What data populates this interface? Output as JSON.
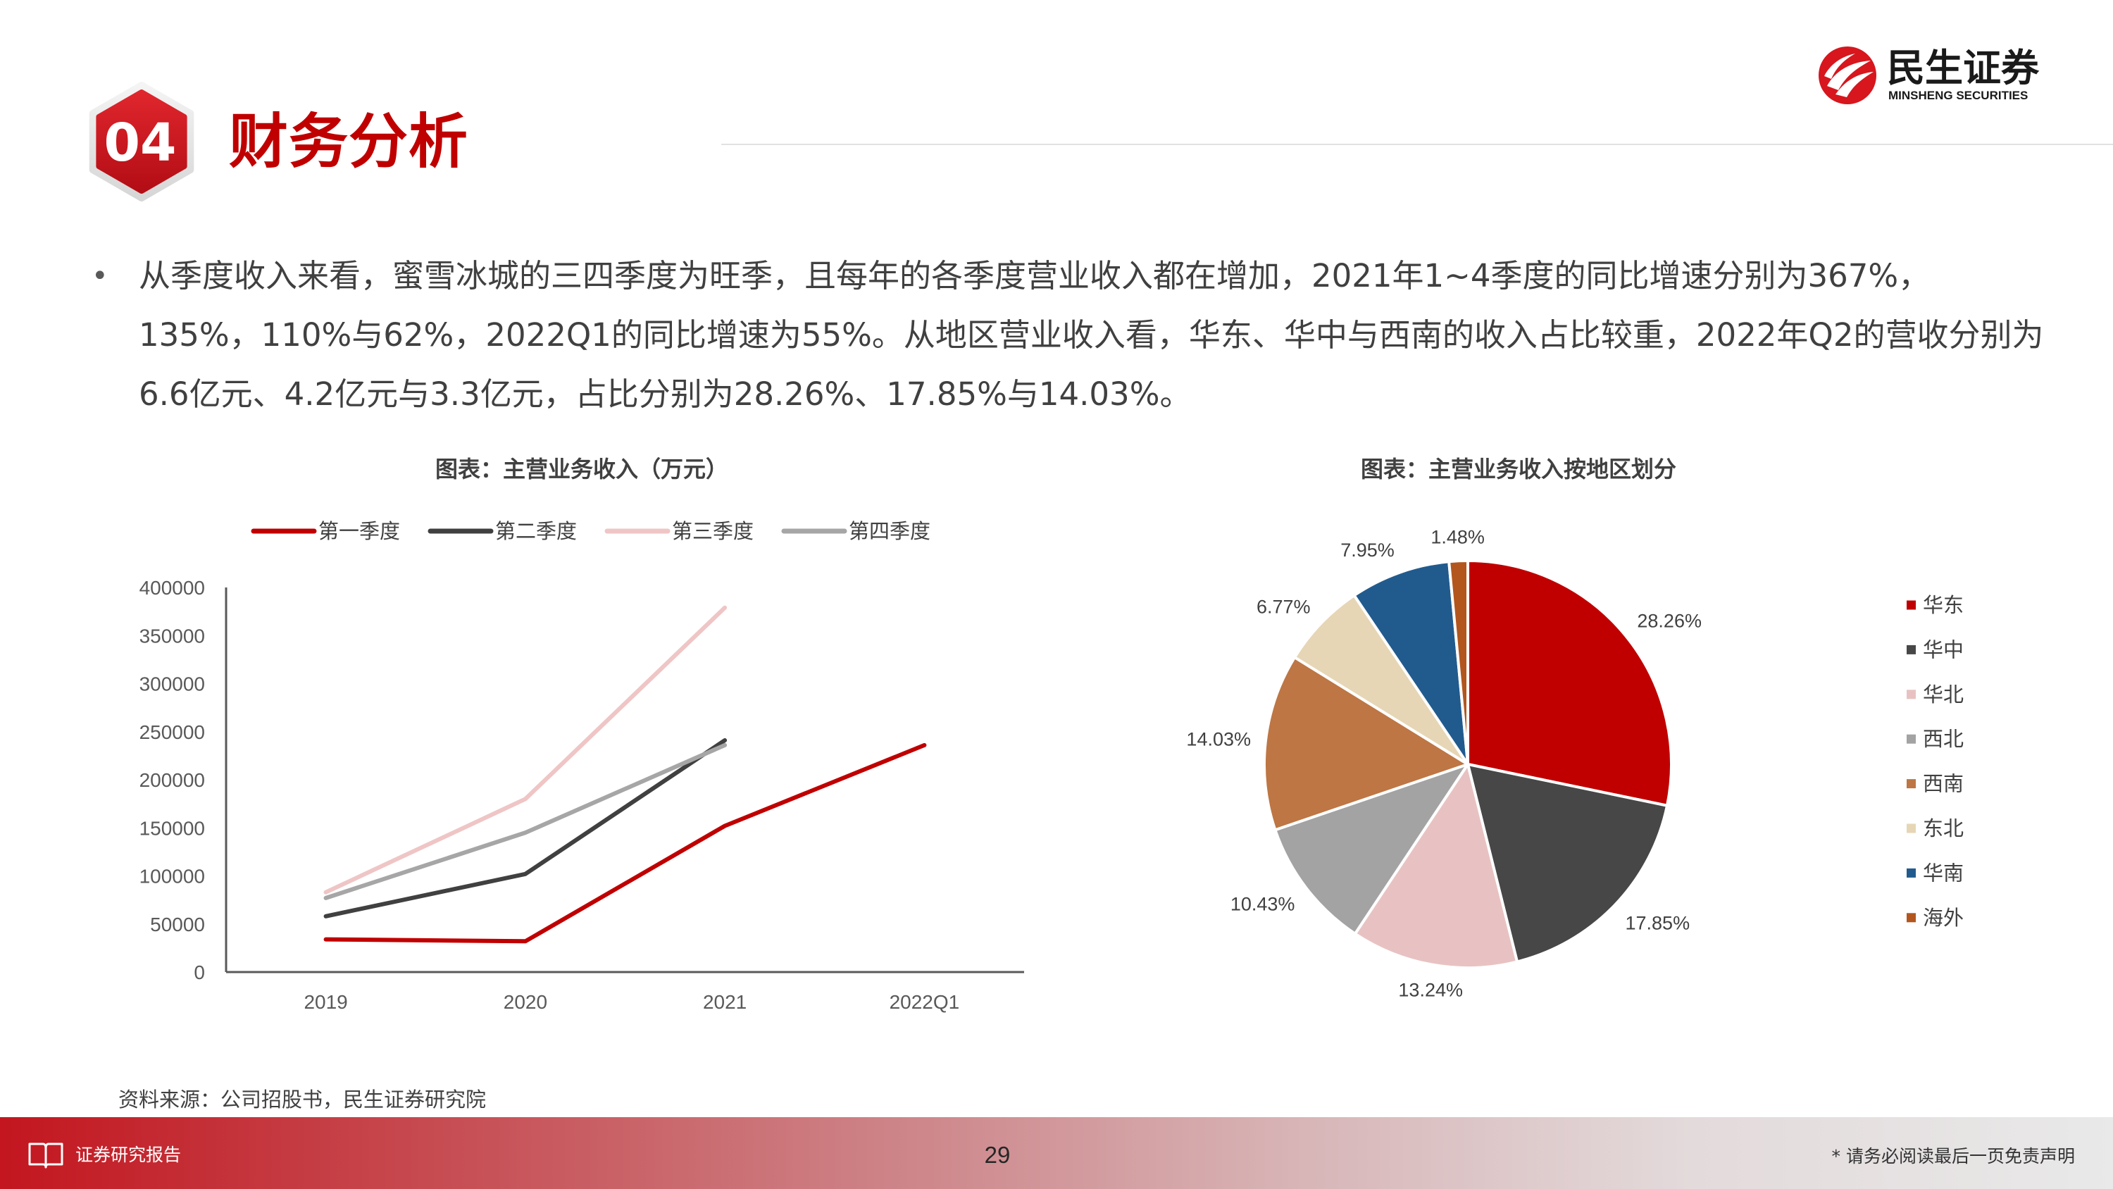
{
  "header": {
    "section_number": "04",
    "title": "财务分析",
    "logo": {
      "icon": "minsheng-logo-icon",
      "name_cn": "民生证券",
      "name_en": "MINSHENG SECURITIES",
      "color": "#D7161E"
    }
  },
  "summary": {
    "bullet": "•",
    "lines": [
      "从季度收入来看，蜜雪冰城的三四季度为旺季，且每年的各季度营业收入都在增加，2021年1~4季度的同比增速分别为367%，",
      "135%，110%与62%，2022Q1的同比增速为55%。从地区营业收入看，华东、华中与西南的收入占比较重，2022年Q2的营收分别为",
      "6.6亿元、4.2亿元与3.3亿元，占比分别为28.26%、17.85%与14.03%。"
    ]
  },
  "chart_data": [
    {
      "type": "line",
      "title": "图表：主营业务收入（万元）",
      "categories": [
        "2019",
        "2020",
        "2021",
        "2022Q1"
      ],
      "series": [
        {
          "name": "第一季度",
          "color": "#C00000",
          "values": [
            34000,
            32000,
            152000,
            236000
          ]
        },
        {
          "name": "第二季度",
          "color": "#404040",
          "values": [
            58000,
            102000,
            241000,
            null
          ]
        },
        {
          "name": "第三季度",
          "color": "#EFC5C5",
          "values": [
            83000,
            180000,
            379000,
            null
          ]
        },
        {
          "name": "第四季度",
          "color": "#A6A6A6",
          "values": [
            77000,
            145000,
            236000,
            null
          ]
        }
      ],
      "ylim": [
        0,
        400000
      ],
      "yticks": [
        0,
        50000,
        100000,
        150000,
        200000,
        250000,
        300000,
        350000,
        400000
      ],
      "legend": "top",
      "grid": false
    },
    {
      "type": "pie",
      "title": "图表：主营业务收入按地区划分",
      "slices": [
        {
          "name": "华东",
          "value": 28.26,
          "label": "28.26%",
          "color": "#C00000"
        },
        {
          "name": "华中",
          "value": 17.85,
          "label": "17.85%",
          "color": "#474747"
        },
        {
          "name": "华北",
          "value": 13.24,
          "label": "13.24%",
          "color": "#E8C2C2"
        },
        {
          "name": "西北",
          "value": 10.43,
          "label": "10.43%",
          "color": "#A3A3A3"
        },
        {
          "name": "西南",
          "value": 14.03,
          "label": "14.03%",
          "color": "#BD7644"
        },
        {
          "name": "东北",
          "value": 6.77,
          "label": "6.77%",
          "color": "#E6D6B5"
        },
        {
          "name": "华南",
          "value": 7.95,
          "label": "7.95%",
          "color": "#215B8E"
        },
        {
          "name": "海外",
          "value": 1.48,
          "label": "1.48%",
          "color": "#B2561E"
        }
      ],
      "start": "top",
      "direction": "clockwise",
      "legend": "right"
    }
  ],
  "source_note": "资料来源：公司招股书，民生证券研究院",
  "footer": {
    "icon": "book-icon",
    "report_type": "证券研究报告",
    "page_number": "29",
    "disclaimer": "* 请务必阅读最后一页免责声明"
  }
}
